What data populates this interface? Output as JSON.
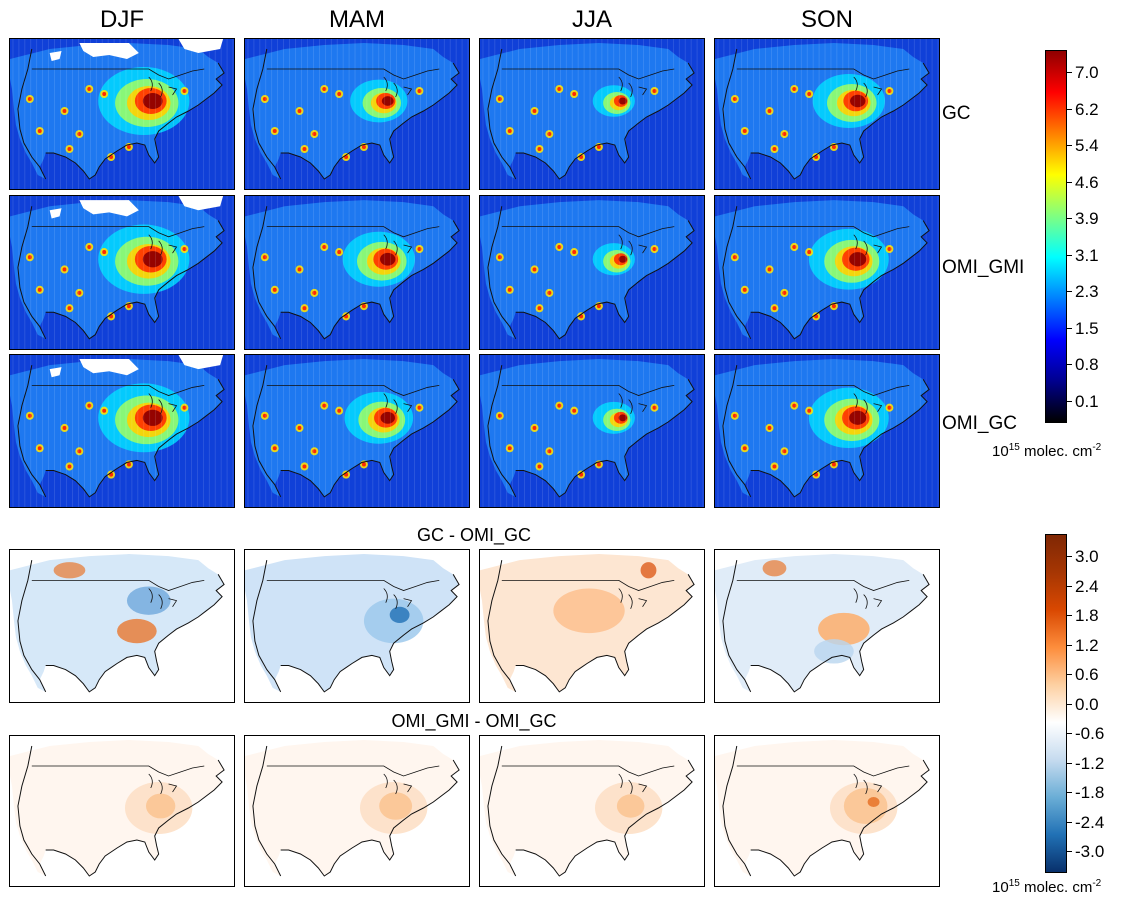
{
  "seasons": [
    "DJF",
    "MAM",
    "JJA",
    "SON"
  ],
  "row_labels": {
    "gc": "GC",
    "omi_gmi": "OMI_GMI",
    "omi_gc": "OMI_GC"
  },
  "diff_titles": {
    "gc_minus_omi_gc": "GC - OMI_GC",
    "gmi_minus_gc": "OMI_GMI - OMI_GC"
  },
  "colorbar_top": {
    "ticks": [
      "7.0",
      "6.2",
      "5.4",
      "4.6",
      "3.9",
      "3.1",
      "2.3",
      "1.5",
      "0.8",
      "0.1"
    ],
    "unit_base": "10",
    "unit_exp": "15",
    "unit_text": " molec. cm",
    "unit_exp2": "-2",
    "colors": [
      "#000000",
      "#00008f",
      "#0000ff",
      "#0080ff",
      "#00ffff",
      "#80ff80",
      "#ffff00",
      "#ff8000",
      "#ff0000",
      "#8f0000"
    ]
  },
  "colorbar_bottom": {
    "ticks": [
      "3.0",
      "2.4",
      "1.8",
      "1.2",
      "0.6",
      "0.0",
      "-0.6",
      "-1.2",
      "-1.8",
      "-2.4",
      "-3.0"
    ],
    "unit_base": "10",
    "unit_exp": "15",
    "unit_text": " molec. cm",
    "unit_exp2": "-2",
    "colors": [
      "#08306b",
      "#2171b5",
      "#6baed6",
      "#c6dbef",
      "#ffffff",
      "#fdd0a2",
      "#fd8d3c",
      "#d94801",
      "#a63603",
      "#7f2704"
    ]
  },
  "map_colors": {
    "ocean": "#1040d8",
    "land_base": "#1e78f0",
    "nodata": "#ffffff",
    "boundary": "#111111"
  }
}
